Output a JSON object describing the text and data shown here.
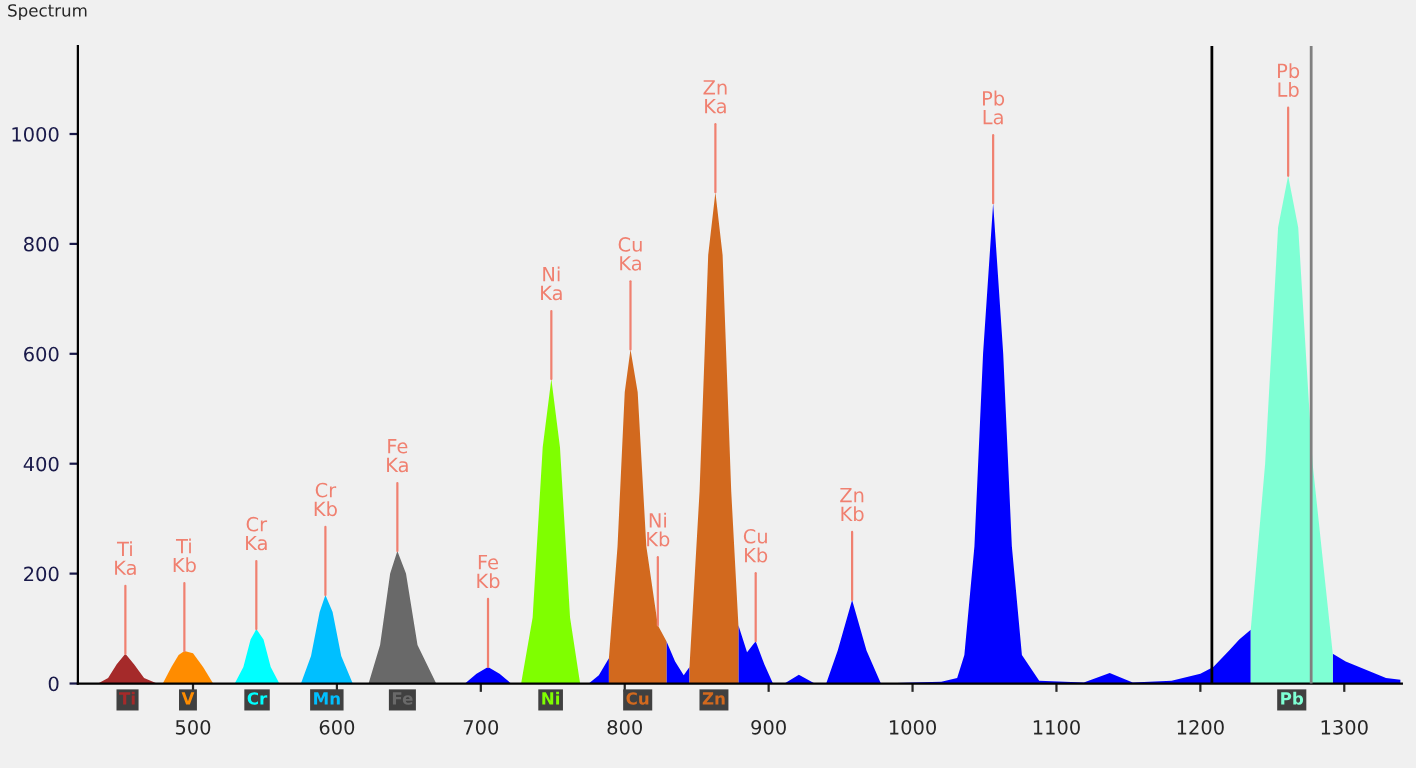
{
  "chart_data": {
    "type": "area",
    "title": "Spectrum",
    "xlim": [
      420,
      1340
    ],
    "xticks": [
      500,
      600,
      700,
      800,
      900,
      1000,
      1100,
      1200,
      1300
    ],
    "ylim": [
      0,
      1160
    ],
    "yticks": [
      0,
      200,
      400,
      600,
      800,
      1000
    ],
    "grid": false,
    "legend": false,
    "series": [
      {
        "color": "#0000ff",
        "x": [
          680,
          689,
          697,
          705,
          713,
          721,
          775,
          782,
          789,
          800,
          829,
          835,
          841,
          845,
          860,
          879,
          885,
          891,
          897,
          903,
          911,
          921,
          932,
          940,
          948,
          958,
          968,
          978,
          1000,
          1020,
          1031,
          1036,
          1043,
          1049,
          1056,
          1063,
          1069,
          1076,
          1088,
          1119,
          1137,
          1153,
          1180,
          1200,
          1209,
          1220,
          1227,
          1235,
          1250,
          1292,
          1301,
          1315,
          1329,
          1339
        ],
        "values": [
          0,
          0,
          18,
          30,
          18,
          0,
          0,
          15,
          46,
          null,
          77,
          40,
          15,
          30,
          null,
          106,
          57,
          77,
          35,
          0,
          0,
          16,
          0,
          0,
          60,
          152,
          60,
          0,
          2,
          3,
          10,
          52,
          250,
          600,
          874,
          600,
          250,
          52,
          5,
          2,
          19,
          2,
          5,
          18,
          30,
          60,
          80,
          98,
          null,
          54,
          40,
          25,
          10,
          7
        ]
      },
      {
        "name": "Ti",
        "color": "#a52a2a",
        "x": [
          434,
          441,
          447,
          453,
          459,
          466,
          475
        ],
        "values": [
          0,
          10,
          35,
          54,
          35,
          10,
          0
        ]
      },
      {
        "name": "V",
        "color": "#ff8c00",
        "x": [
          479,
          485,
          490,
          494,
          500,
          507,
          514
        ],
        "values": [
          0,
          30,
          52,
          59,
          55,
          30,
          0
        ]
      },
      {
        "name": "Cr",
        "color": "#00ffff",
        "x": [
          529,
          535,
          540,
          544,
          549,
          554,
          560
        ],
        "values": [
          0,
          30,
          80,
          99,
          80,
          30,
          0
        ]
      },
      {
        "name": "Mn",
        "color": "#00bfff",
        "x": [
          575,
          582,
          588,
          592,
          597,
          603,
          611
        ],
        "values": [
          0,
          50,
          130,
          161,
          130,
          50,
          0
        ]
      },
      {
        "name": "Fe",
        "color": "#696969",
        "x": [
          622,
          630,
          637,
          642,
          648,
          656,
          669
        ],
        "values": [
          0,
          70,
          200,
          241,
          200,
          70,
          0
        ]
      },
      {
        "name": "Ni",
        "color": "#7fff00",
        "x": [
          728,
          736,
          743,
          749,
          755,
          762,
          769
        ],
        "values": [
          0,
          120,
          430,
          554,
          430,
          120,
          0
        ]
      },
      {
        "name": "Cu",
        "color": "#d2691e",
        "x": [
          789,
          795,
          800,
          804,
          809,
          815,
          823,
          829
        ],
        "values": [
          46,
          250,
          530,
          608,
          530,
          250,
          106,
          77
        ]
      },
      {
        "name": "Zn",
        "color": "#d2691e",
        "x": [
          845,
          852,
          858,
          863,
          868,
          874,
          879
        ],
        "values": [
          30,
          350,
          780,
          894,
          780,
          350,
          106
        ]
      },
      {
        "name": "Pb",
        "color": "#7fffd4",
        "x": [
          1235,
          1245,
          1254,
          1261,
          1268,
          1278,
          1292
        ],
        "values": [
          98,
          400,
          830,
          924,
          830,
          400,
          54
        ]
      }
    ],
    "ref_lines": [
      {
        "axis": "x",
        "value": 1208,
        "color": "#000000"
      },
      {
        "axis": "x",
        "value": 1277,
        "color": "#808080"
      }
    ],
    "annotations": [
      {
        "text": "Ti\nKa",
        "x": 453,
        "y": 54
      },
      {
        "text": "Ti\nKb",
        "x": 494,
        "y": 59
      },
      {
        "text": "Cr\nKa",
        "x": 544,
        "y": 99
      },
      {
        "text": "Cr\nKb",
        "x": 592,
        "y": 161
      },
      {
        "text": "Fe\nKa",
        "x": 642,
        "y": 241
      },
      {
        "text": "Fe\nKb",
        "x": 705,
        "y": 30
      },
      {
        "text": "Ni\nKa",
        "x": 749,
        "y": 554
      },
      {
        "text": "Cu\nKa",
        "x": 804,
        "y": 608
      },
      {
        "text": "Ni\nKb",
        "x": 823,
        "y": 106
      },
      {
        "text": "Zn\nKa",
        "x": 863,
        "y": 894
      },
      {
        "text": "Cu\nKb",
        "x": 891,
        "y": 77
      },
      {
        "text": "Zn\nKb",
        "x": 958,
        "y": 152
      },
      {
        "text": "Pb\nLa",
        "x": 1056,
        "y": 874
      },
      {
        "text": "Pb\nLb",
        "x": 1261,
        "y": 924
      }
    ]
  }
}
